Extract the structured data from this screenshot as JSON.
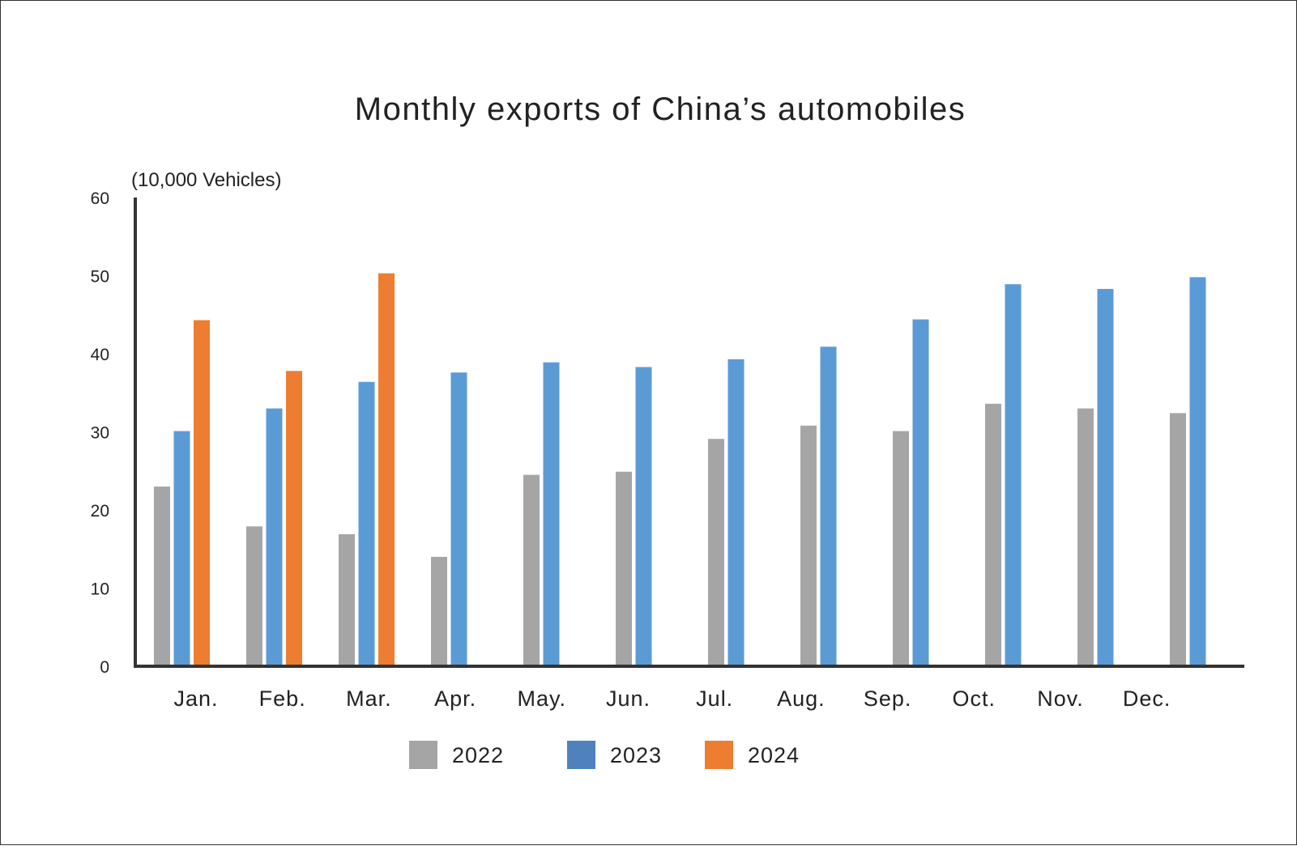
{
  "chart_data": {
    "type": "bar",
    "title": "Monthly exports of China’s automobiles",
    "ylabel": "(10,000 Vehicles)",
    "xlabel": "",
    "ylim": [
      0,
      60
    ],
    "yticks": [
      "0",
      "10",
      "20",
      "30",
      "40",
      "50",
      "60"
    ],
    "grid": false,
    "legend_position": "bottom",
    "categories": [
      "Jan.",
      "Feb.",
      "Mar.",
      "Apr.",
      "May.",
      "Jun.",
      "Jul.",
      "Aug.",
      "Sep.",
      "Oct.",
      "Nov.",
      "Dec."
    ],
    "series": [
      {
        "name": "2022",
        "color": "#a5a5a5",
        "values": [
          23.0,
          17.9,
          16.9,
          14.0,
          24.5,
          24.9,
          29.1,
          30.8,
          30.1,
          33.6,
          33.0,
          32.4
        ]
      },
      {
        "name": "2023",
        "color": "#5b9bd5",
        "values": [
          30.1,
          33.0,
          36.4,
          37.6,
          38.9,
          38.3,
          39.3,
          40.9,
          44.4,
          48.9,
          48.3,
          49.8
        ]
      },
      {
        "name": "2024",
        "color": "#ed7d31",
        "values": [
          44.3,
          37.8,
          50.3,
          null,
          null,
          null,
          null,
          null,
          null,
          null,
          null,
          null
        ]
      }
    ],
    "legend_colors": [
      "#a5a5a5",
      "#4f81bd",
      "#ed7d31"
    ]
  }
}
